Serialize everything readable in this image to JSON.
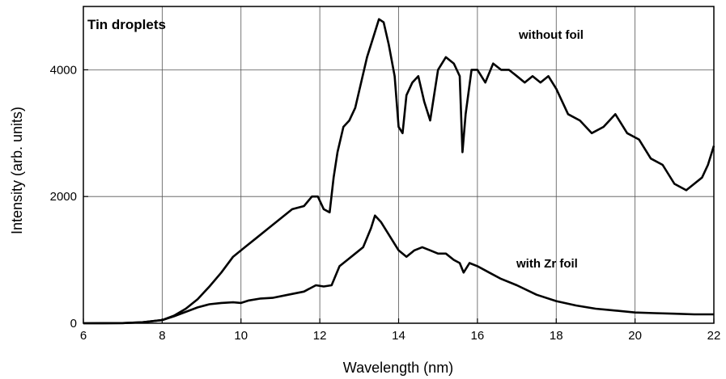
{
  "chart_data": {
    "type": "line",
    "title": "Tin droplets",
    "xlabel": "Wavelength (nm)",
    "ylabel": "Intensity (arb. units)",
    "xlim": [
      6,
      22
    ],
    "ylim": [
      0,
      5000
    ],
    "x_ticks": [
      6,
      8,
      10,
      12,
      14,
      16,
      18,
      20,
      22
    ],
    "y_ticks": [
      0,
      2000,
      4000
    ],
    "grid": true,
    "line_color": "#000000",
    "series": [
      {
        "name": "without foil",
        "x": [
          6,
          7,
          7.5,
          8,
          8.3,
          8.6,
          8.9,
          9.2,
          9.5,
          9.8,
          10.1,
          10.4,
          10.7,
          11.0,
          11.3,
          11.6,
          11.8,
          11.95,
          12.1,
          12.25,
          12.35,
          12.45,
          12.6,
          12.75,
          12.9,
          13.05,
          13.2,
          13.35,
          13.5,
          13.62,
          13.75,
          13.9,
          14.0,
          14.1,
          14.2,
          14.35,
          14.5,
          14.65,
          14.8,
          15.0,
          15.2,
          15.4,
          15.55,
          15.62,
          15.7,
          15.85,
          16.0,
          16.2,
          16.4,
          16.6,
          16.8,
          17.0,
          17.2,
          17.4,
          17.6,
          17.8,
          18.0,
          18.3,
          18.6,
          18.9,
          19.2,
          19.5,
          19.8,
          20.1,
          20.4,
          20.7,
          21.0,
          21.3,
          21.5,
          21.7,
          21.85,
          22.0
        ],
        "y": [
          0,
          3,
          15,
          50,
          120,
          230,
          380,
          580,
          800,
          1050,
          1200,
          1350,
          1500,
          1650,
          1800,
          1850,
          2000,
          2000,
          1800,
          1750,
          2300,
          2700,
          3100,
          3200,
          3400,
          3800,
          4200,
          4500,
          4800,
          4750,
          4400,
          3900,
          3100,
          3000,
          3600,
          3800,
          3900,
          3500,
          3200,
          4000,
          4200,
          4100,
          3900,
          2700,
          3300,
          4000,
          4000,
          3800,
          4100,
          4000,
          4000,
          3900,
          3800,
          3900,
          3800,
          3900,
          3700,
          3300,
          3200,
          3000,
          3100,
          3300,
          3000,
          2900,
          2600,
          2500,
          2200,
          2100,
          2200,
          2300,
          2500,
          2800
        ]
      },
      {
        "name": "with Zr foil",
        "x": [
          6,
          7,
          7.5,
          8,
          8.3,
          8.6,
          8.9,
          9.2,
          9.5,
          9.8,
          10.0,
          10.2,
          10.5,
          10.8,
          11.2,
          11.6,
          11.9,
          12.1,
          12.3,
          12.5,
          12.7,
          12.9,
          13.1,
          13.3,
          13.4,
          13.55,
          13.7,
          13.85,
          14.0,
          14.2,
          14.4,
          14.6,
          14.8,
          15.0,
          15.2,
          15.4,
          15.55,
          15.65,
          15.8,
          16.0,
          16.3,
          16.6,
          17.0,
          17.5,
          18.0,
          18.5,
          19.0,
          19.5,
          20.0,
          20.5,
          21.0,
          21.5,
          22.0
        ],
        "y": [
          0,
          3,
          15,
          50,
          110,
          180,
          250,
          300,
          320,
          330,
          320,
          360,
          390,
          400,
          450,
          500,
          600,
          580,
          600,
          900,
          1000,
          1100,
          1200,
          1500,
          1700,
          1600,
          1450,
          1300,
          1150,
          1050,
          1150,
          1200,
          1150,
          1100,
          1100,
          1000,
          950,
          800,
          950,
          900,
          800,
          700,
          600,
          450,
          350,
          280,
          230,
          200,
          170,
          160,
          150,
          140,
          140
        ]
      }
    ]
  }
}
